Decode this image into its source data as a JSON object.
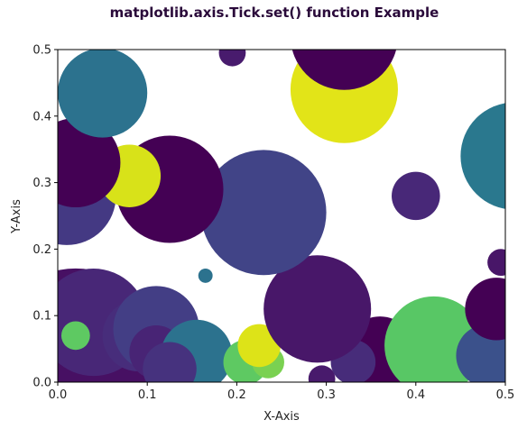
{
  "chart_data": {
    "type": "scatter",
    "title": "matplotlib.axis.Tick.set() function Example",
    "xlabel": "X-Axis",
    "ylabel": "Y-Axis",
    "xlim": [
      0.0,
      0.5
    ],
    "ylim": [
      0.0,
      0.5
    ],
    "x_ticks": [
      "0.0",
      "0.1",
      "0.2",
      "0.3",
      "0.4",
      "0.5"
    ],
    "y_ticks": [
      "0.0",
      "0.1",
      "0.2",
      "0.3",
      "0.4",
      "0.5"
    ],
    "grid": false,
    "colormap": "viridis",
    "points": [
      {
        "x": 0.02,
        "y": 0.05,
        "r": 0.09,
        "color": "#471063"
      },
      {
        "x": 0.01,
        "y": 0.28,
        "r": 0.055,
        "color": "#443983"
      },
      {
        "x": 0.04,
        "y": 0.09,
        "r": 0.06,
        "color": "#482777"
      },
      {
        "x": 0.09,
        "y": 0.07,
        "r": 0.04,
        "color": "#472d7b"
      },
      {
        "x": 0.11,
        "y": 0.08,
        "r": 0.048,
        "color": "#433e85"
      },
      {
        "x": 0.11,
        "y": 0.045,
        "r": 0.03,
        "color": "#482475"
      },
      {
        "x": 0.155,
        "y": 0.04,
        "r": 0.04,
        "color": "#2c728e"
      },
      {
        "x": 0.125,
        "y": 0.02,
        "r": 0.03,
        "color": "#46327e"
      },
      {
        "x": 0.21,
        "y": 0.03,
        "r": 0.025,
        "color": "#5ec962"
      },
      {
        "x": 0.235,
        "y": 0.03,
        "r": 0.018,
        "color": "#7ad151"
      },
      {
        "x": 0.225,
        "y": 0.055,
        "r": 0.024,
        "color": "#dde318"
      },
      {
        "x": 0.295,
        "y": 0.005,
        "r": 0.015,
        "color": "#481a6c"
      },
      {
        "x": 0.36,
        "y": 0.045,
        "r": 0.04,
        "color": "#440154"
      },
      {
        "x": 0.33,
        "y": 0.03,
        "r": 0.025,
        "color": "#472c7a"
      },
      {
        "x": 0.29,
        "y": 0.11,
        "r": 0.06,
        "color": "#481769"
      },
      {
        "x": 0.42,
        "y": 0.055,
        "r": 0.055,
        "color": "#58c765"
      },
      {
        "x": 0.48,
        "y": 0.04,
        "r": 0.035,
        "color": "#3b518b"
      },
      {
        "x": 0.49,
        "y": 0.11,
        "r": 0.035,
        "color": "#440154"
      },
      {
        "x": 0.495,
        "y": 0.18,
        "r": 0.015,
        "color": "#481668"
      },
      {
        "x": 0.23,
        "y": 0.255,
        "r": 0.07,
        "color": "#414487"
      },
      {
        "x": 0.125,
        "y": 0.29,
        "r": 0.06,
        "color": "#440154"
      },
      {
        "x": 0.08,
        "y": 0.31,
        "r": 0.035,
        "color": "#d8e219"
      },
      {
        "x": 0.02,
        "y": 0.33,
        "r": 0.05,
        "color": "#440154"
      },
      {
        "x": 0.05,
        "y": 0.435,
        "r": 0.05,
        "color": "#2c728e"
      },
      {
        "x": 0.32,
        "y": 0.44,
        "r": 0.06,
        "color": "#e2e418"
      },
      {
        "x": 0.32,
        "y": 0.52,
        "r": 0.06,
        "color": "#440154"
      },
      {
        "x": 0.195,
        "y": 0.495,
        "r": 0.015,
        "color": "#481b6d"
      },
      {
        "x": 0.4,
        "y": 0.28,
        "r": 0.027,
        "color": "#482878"
      },
      {
        "x": 0.51,
        "y": 0.34,
        "r": 0.06,
        "color": "#2a788e"
      },
      {
        "x": 0.165,
        "y": 0.16,
        "r": 0.008,
        "color": "#2c728e"
      },
      {
        "x": 0.02,
        "y": 0.07,
        "r": 0.016,
        "color": "#5ec962"
      }
    ]
  }
}
